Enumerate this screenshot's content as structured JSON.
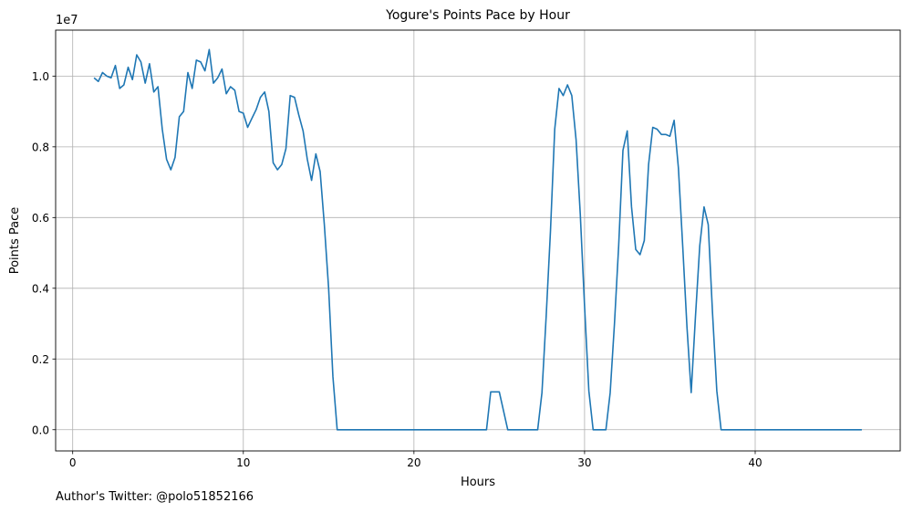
{
  "footnote": "Author's Twitter: @polo51852166",
  "chart_data": {
    "type": "line",
    "title": "Yogure's Points Pace by Hour",
    "xlabel": "Hours",
    "ylabel": "Points Pace",
    "y_offset_label": "1e7",
    "xlim": [
      -1,
      48.5
    ],
    "ylim": [
      -600000,
      11300000
    ],
    "xticks": [
      0,
      10,
      20,
      30,
      40
    ],
    "yticks": [
      0,
      2000000,
      4000000,
      6000000,
      8000000,
      10000000
    ],
    "ytick_labels": [
      "0.0",
      "0.2",
      "0.4",
      "0.6",
      "0.8",
      "1.0"
    ],
    "grid": true,
    "line_color": "#1f77b4",
    "series": [
      {
        "x": [
          1.25,
          1.5,
          1.75,
          2.0,
          2.25,
          2.5,
          2.75,
          3.0,
          3.25,
          3.5,
          3.75,
          4.0,
          4.25,
          4.5,
          4.75,
          5.0,
          5.25,
          5.5,
          5.75,
          6.0,
          6.25,
          6.5,
          6.75,
          7.0,
          7.25,
          7.5,
          7.75,
          8.0,
          8.25,
          8.5,
          8.75,
          9.0,
          9.25,
          9.5,
          9.75,
          10.0,
          10.25,
          10.5,
          10.75,
          11.0,
          11.25,
          11.5,
          11.75,
          12.0,
          12.25,
          12.5,
          12.75,
          13.0,
          13.25,
          13.5,
          13.75,
          14.0,
          14.25,
          14.5,
          14.75,
          15.0,
          15.25,
          15.5,
          24.25,
          24.5,
          25.0,
          25.5,
          27.25,
          27.5,
          27.75,
          28.0,
          28.25,
          28.5,
          28.75,
          29.0,
          29.25,
          29.5,
          29.75,
          30.0,
          30.25,
          30.5,
          31.25,
          31.5,
          31.75,
          32.0,
          32.25,
          32.5,
          32.75,
          33.0,
          33.25,
          33.5,
          33.75,
          34.0,
          34.25,
          34.5,
          34.75,
          35.0,
          35.25,
          35.5,
          35.75,
          36.0,
          36.25,
          36.5,
          36.75,
          37.0,
          37.25,
          37.5,
          37.75,
          38.0,
          46.25
        ],
        "y": [
          9950000,
          9850000,
          10100000,
          10000000,
          9950000,
          10300000,
          9650000,
          9750000,
          10250000,
          9900000,
          10600000,
          10400000,
          9800000,
          10350000,
          9550000,
          9700000,
          8500000,
          7650000,
          7350000,
          7700000,
          8850000,
          9000000,
          10100000,
          9650000,
          10450000,
          10400000,
          10150000,
          10750000,
          9800000,
          9950000,
          10200000,
          9500000,
          9700000,
          9600000,
          9000000,
          8950000,
          8550000,
          8800000,
          9050000,
          9400000,
          9550000,
          9000000,
          7550000,
          7350000,
          7500000,
          7950000,
          9450000,
          9400000,
          8900000,
          8450000,
          7650000,
          7050000,
          7800000,
          7300000,
          5800000,
          4000000,
          1500000,
          0,
          0,
          1070000,
          1070000,
          0,
          0,
          1050000,
          3200000,
          5600000,
          8500000,
          9650000,
          9450000,
          9750000,
          9450000,
          8200000,
          6100000,
          3500000,
          1100000,
          0,
          0,
          1050000,
          3000000,
          5200000,
          7900000,
          8450000,
          6300000,
          5100000,
          4950000,
          5350000,
          7500000,
          8550000,
          8500000,
          8350000,
          8350000,
          8300000,
          8750000,
          7400000,
          5200000,
          2900000,
          1050000,
          3200000,
          5200000,
          6300000,
          5800000,
          3300000,
          1100000,
          0,
          0
        ]
      }
    ]
  }
}
